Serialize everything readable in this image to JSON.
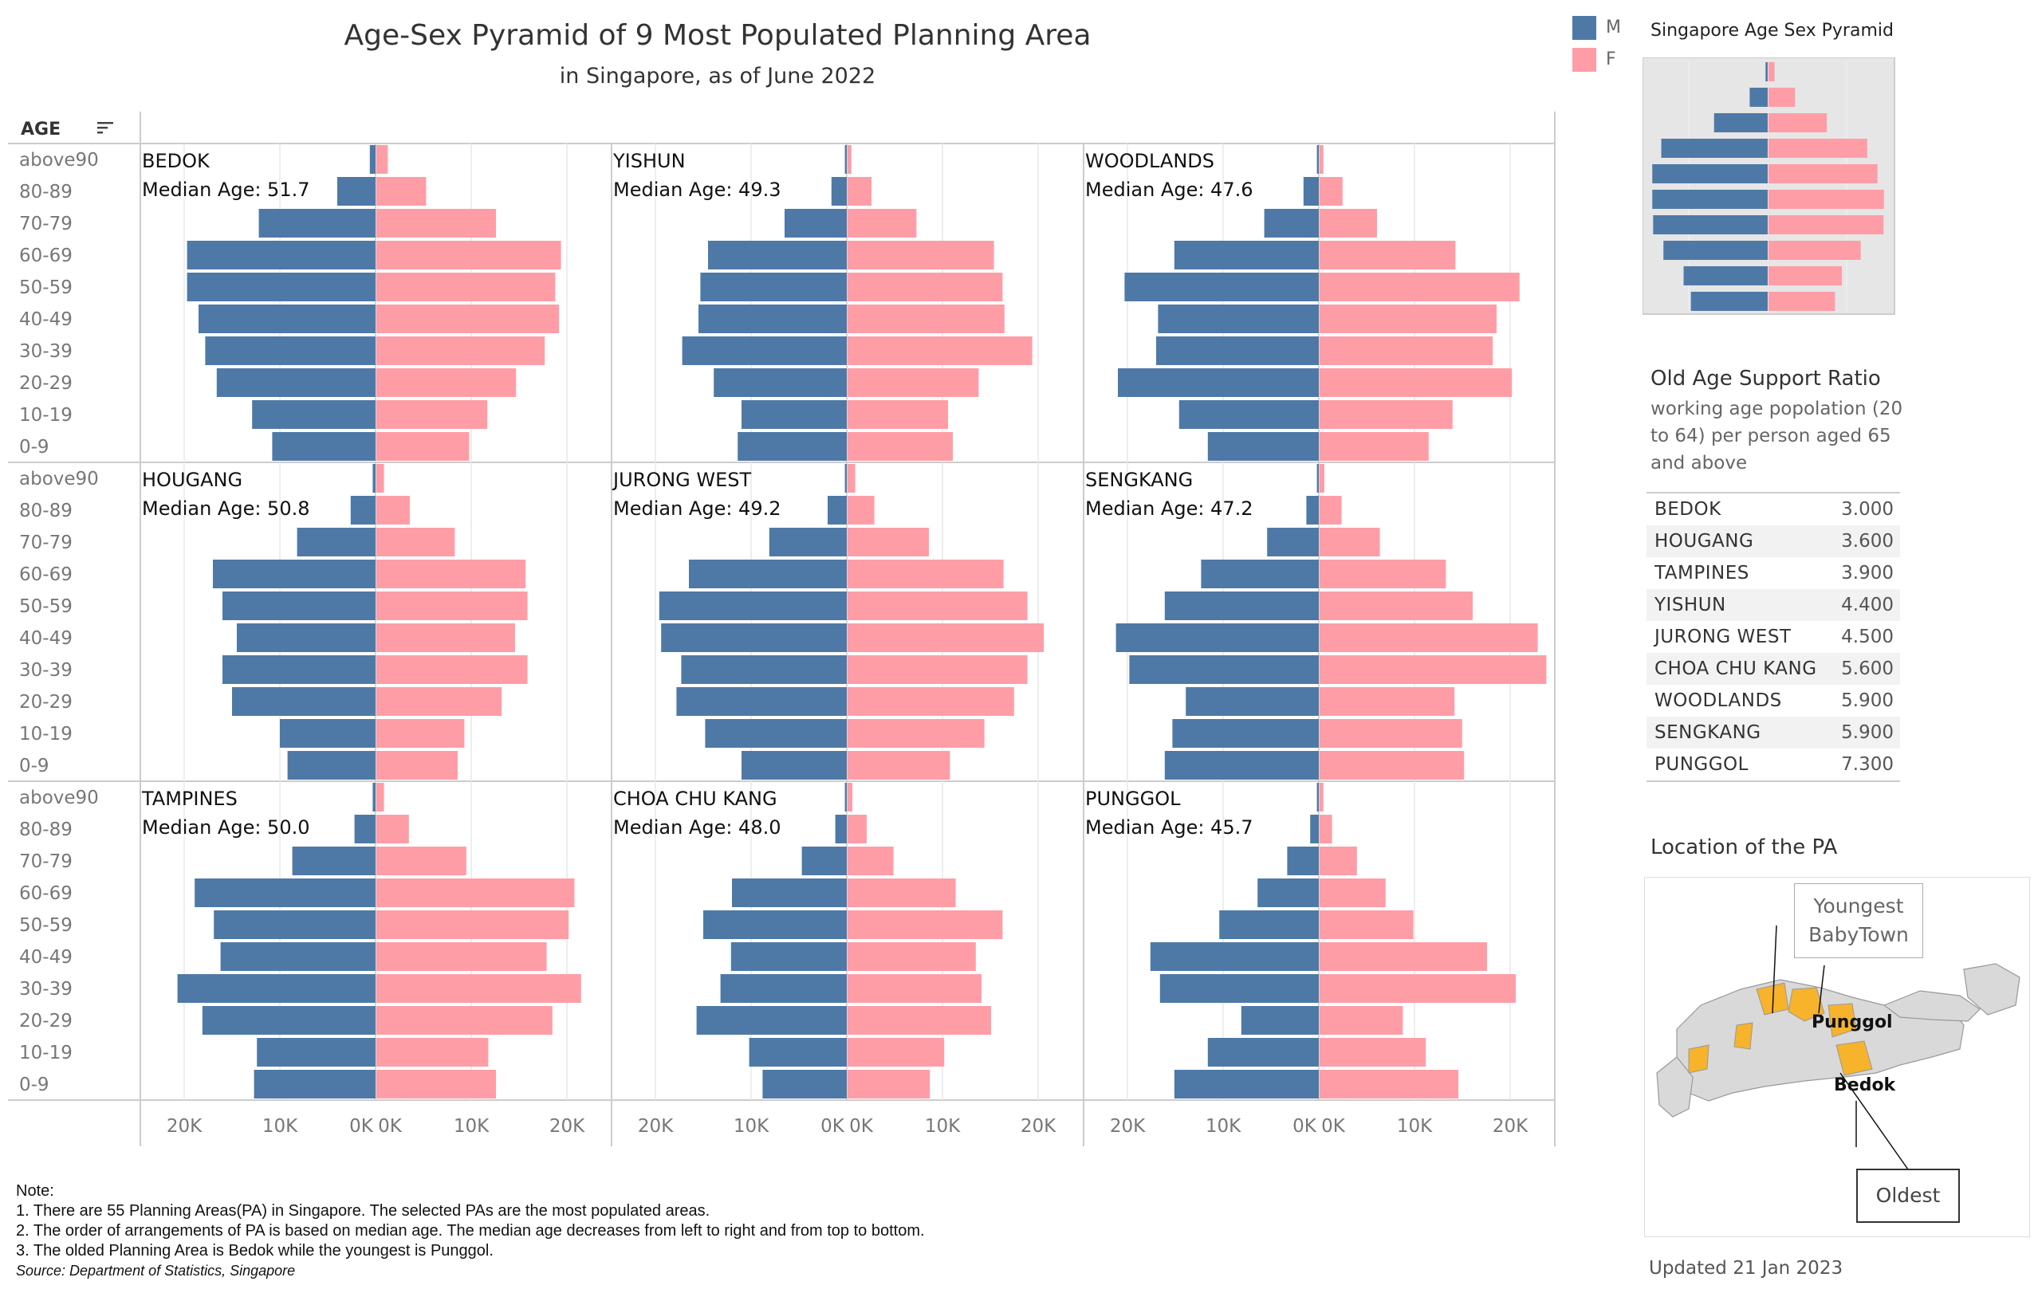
{
  "header": {
    "title": "Age-Sex Pyramid of 9 Most Populated Planning Area",
    "subtitle": "in Singapore, as of June 2022"
  },
  "legend": {
    "male_label": "M",
    "female_label": "F",
    "male_color": "#4e79a7",
    "female_color": "#ff9da7"
  },
  "age_header": "AGE",
  "median_prefix": "Median Age:",
  "chart_data": {
    "type": "bar",
    "orientation": "horizontal population pyramid (small multiples 3x3)",
    "age_groups": [
      "above90",
      "80-89",
      "70-79",
      "60-69",
      "50-59",
      "40-49",
      "30-39",
      "20-29",
      "10-19",
      "0-9"
    ],
    "x_ticks_left": [
      "20K",
      "10K",
      "0K"
    ],
    "x_ticks_right": [
      "0K",
      "10K",
      "20K"
    ],
    "x_range": [
      0,
      22000
    ],
    "panels": [
      {
        "area": "BEDOK",
        "median_age": "51.7",
        "male": [
          600,
          4000,
          12200,
          19700,
          19700,
          18500,
          17800,
          16600,
          12900,
          10800
        ],
        "female": [
          1200,
          5200,
          12500,
          19300,
          18700,
          19100,
          17600,
          14600,
          11600,
          9700
        ]
      },
      {
        "area": "YISHUN",
        "median_age": "49.3",
        "male": [
          200,
          1600,
          6500,
          14500,
          15300,
          15500,
          17200,
          13900,
          11000,
          11400
        ],
        "female": [
          400,
          2500,
          7200,
          15300,
          16200,
          16400,
          19300,
          13700,
          10500,
          11000
        ]
      },
      {
        "area": "WOODLANDS",
        "median_age": "47.6",
        "male": [
          200,
          1600,
          5700,
          15100,
          20300,
          16800,
          17000,
          21000,
          14600,
          11600
        ],
        "female": [
          400,
          2400,
          6000,
          14200,
          20900,
          18500,
          18100,
          20100,
          13900,
          11400
        ]
      },
      {
        "area": "HOUGANG",
        "median_age": "50.8",
        "male": [
          300,
          2600,
          8200,
          17000,
          16000,
          14500,
          16000,
          15000,
          10000,
          9200
        ],
        "female": [
          800,
          3500,
          8200,
          15600,
          15800,
          14500,
          15800,
          13100,
          9200,
          8500
        ]
      },
      {
        "area": "JURONG WEST",
        "median_age": "49.2",
        "male": [
          200,
          2000,
          8100,
          16500,
          19600,
          19400,
          17300,
          17800,
          14800,
          11000
        ],
        "female": [
          800,
          2800,
          8500,
          16300,
          18800,
          20500,
          18800,
          17400,
          14300,
          10700
        ]
      },
      {
        "area": "SENGKANG",
        "median_age": "47.2",
        "male": [
          200,
          1300,
          5400,
          12300,
          16100,
          21200,
          19800,
          13900,
          15300,
          16100
        ],
        "female": [
          500,
          2300,
          6300,
          13200,
          16000,
          22800,
          23700,
          14100,
          14900,
          15100
        ]
      },
      {
        "area": "TAMPINES",
        "median_age": "50.0",
        "male": [
          300,
          2200,
          8700,
          18900,
          16900,
          16200,
          20700,
          18100,
          12400,
          12700
        ],
        "female": [
          800,
          3400,
          9400,
          20700,
          20100,
          17800,
          21400,
          18400,
          11700,
          12500
        ]
      },
      {
        "area": "CHOA CHU KANG",
        "median_age": "48.0",
        "male": [
          200,
          1200,
          4700,
          12000,
          15000,
          12100,
          13200,
          15700,
          10200,
          8800
        ],
        "female": [
          500,
          2000,
          4800,
          11300,
          16200,
          13400,
          14000,
          15000,
          10100,
          8600
        ]
      },
      {
        "area": "PUNGGOL",
        "median_age": "45.7",
        "male": [
          200,
          900,
          3300,
          6400,
          10400,
          17600,
          16600,
          8100,
          11600,
          15100
        ],
        "female": [
          400,
          1300,
          3900,
          6900,
          9800,
          17500,
          20500,
          8700,
          11100,
          14500
        ]
      }
    ]
  },
  "mini_pyramid": {
    "title": "Singapore Age Sex Pyramid",
    "male": [
      0.5,
      4.2,
      12.5,
      24.8,
      26.9,
      26.9,
      26.7,
      24.3,
      19.6,
      17.9
    ],
    "female": [
      1.4,
      6.2,
      13.6,
      23.0,
      25.4,
      26.9,
      26.8,
      21.5,
      17.1,
      15.5
    ]
  },
  "ratio": {
    "title": "Old Age Support Ratio",
    "description": "working age popolation (20 to 64) per person aged 65 and above",
    "rows": [
      {
        "name": "BEDOK",
        "value": "3.000"
      },
      {
        "name": "HOUGANG",
        "value": "3.600"
      },
      {
        "name": "TAMPINES",
        "value": "3.900"
      },
      {
        "name": "YISHUN",
        "value": "4.400"
      },
      {
        "name": "JURONG WEST",
        "value": "4.500"
      },
      {
        "name": "CHOA CHU KANG",
        "value": "5.600"
      },
      {
        "name": "WOODLANDS",
        "value": "5.900"
      },
      {
        "name": "SENGKANG",
        "value": "5.900"
      },
      {
        "name": "PUNGGOL",
        "value": "7.300"
      }
    ]
  },
  "location": {
    "title": "Location of the PA",
    "youngest_line1": "Youngest",
    "youngest_line2": "BabyTown",
    "oldest": "Oldest",
    "punggol_label": "Punggol",
    "bedok_label": "Bedok",
    "highlight_color": "#f6b32b"
  },
  "notes": {
    "heading": "Note:",
    "line1": "1. There are 55 Planning Areas(PA) in Singapore. The selected PAs are the most populated areas.",
    "line2": "2. The order of arrangements of PA is based on median age. The median age decreases from left to right and from top to bottom.",
    "line3": "3. The olded Planning Area is Bedok while the youngest is Punggol.",
    "source": "Source: Department of Statistics, Singapore"
  },
  "updated": "Updated 21 Jan 2023"
}
